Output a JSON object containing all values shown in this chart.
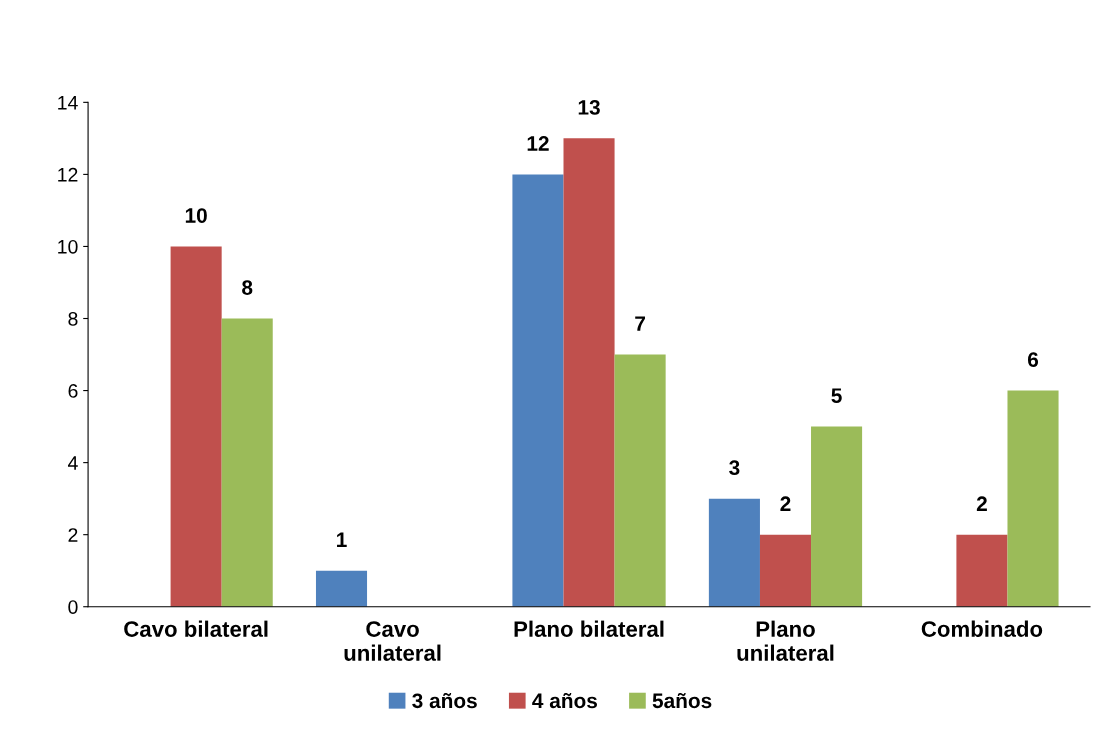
{
  "chart_data": {
    "type": "bar",
    "categories": [
      "Cavo bilateral",
      "Cavo\nunilateral",
      "Plano bilateral",
      "Plano\nunilateral",
      "Combinado"
    ],
    "series": [
      {
        "name": "3 años",
        "color": "#4f81bd",
        "values": [
          null,
          1,
          12,
          3,
          null
        ]
      },
      {
        "name": "4 años",
        "color": "#c0504d",
        "values": [
          10,
          null,
          13,
          2,
          2
        ]
      },
      {
        "name": "5años",
        "color": "#9bbb59",
        "values": [
          8,
          null,
          7,
          5,
          6
        ]
      }
    ],
    "ylim": [
      0,
      14
    ],
    "yticks": [
      0,
      2,
      4,
      6,
      8,
      10,
      12,
      14
    ],
    "grid": false,
    "legend": "bottom",
    "data_labels": true
  }
}
